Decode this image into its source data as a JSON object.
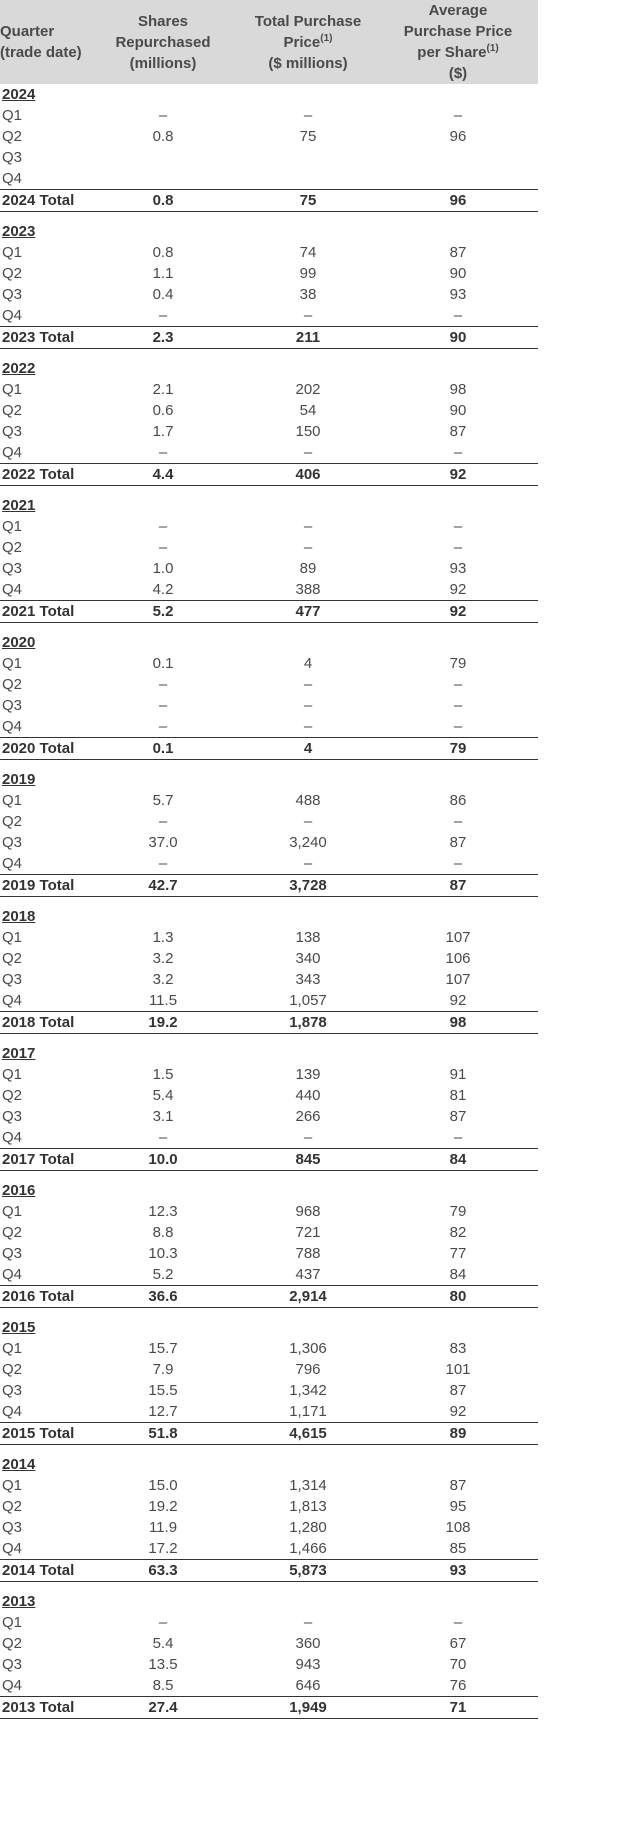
{
  "columns": {
    "quarter": [
      "Quarter",
      "(trade date)"
    ],
    "shares": [
      "Shares",
      "Repurchased",
      "(millions)"
    ],
    "total_price": [
      "Total Purchase",
      "Price",
      "($ millions)"
    ],
    "total_price_footnote": "(1)",
    "avg_price": [
      "Average",
      "Purchase Price",
      "per Share",
      "($)"
    ],
    "avg_price_footnote": "(1)"
  },
  "years": [
    {
      "year": "2024",
      "quarters": [
        {
          "q": "Q1",
          "shares": "–",
          "total": "–",
          "avg": "–"
        },
        {
          "q": "Q2",
          "shares": "0.8",
          "total": "75",
          "avg": "96"
        },
        {
          "q": "Q3",
          "shares": "",
          "total": "",
          "avg": ""
        },
        {
          "q": "Q4",
          "shares": "",
          "total": "",
          "avg": ""
        }
      ],
      "total_label": "2024 Total",
      "total": {
        "shares": "0.8",
        "total": "75",
        "avg": "96"
      }
    },
    {
      "year": "2023",
      "quarters": [
        {
          "q": "Q1",
          "shares": "0.8",
          "total": "74",
          "avg": "87"
        },
        {
          "q": "Q2",
          "shares": "1.1",
          "total": "99",
          "avg": "90"
        },
        {
          "q": "Q3",
          "shares": "0.4",
          "total": "38",
          "avg": "93"
        },
        {
          "q": "Q4",
          "shares": "–",
          "total": "–",
          "avg": "–"
        }
      ],
      "total_label": "2023 Total",
      "total": {
        "shares": "2.3",
        "total": "211",
        "avg": "90"
      }
    },
    {
      "year": "2022",
      "quarters": [
        {
          "q": "Q1",
          "shares": "2.1",
          "total": "202",
          "avg": "98"
        },
        {
          "q": "Q2",
          "shares": "0.6",
          "total": "54",
          "avg": "90"
        },
        {
          "q": "Q3",
          "shares": "1.7",
          "total": "150",
          "avg": "87"
        },
        {
          "q": "Q4",
          "shares": "–",
          "total": "–",
          "avg": "–"
        }
      ],
      "total_label": "2022 Total",
      "total": {
        "shares": "4.4",
        "total": "406",
        "avg": "92"
      }
    },
    {
      "year": "2021",
      "quarters": [
        {
          "q": "Q1",
          "shares": "–",
          "total": "–",
          "avg": "–"
        },
        {
          "q": "Q2",
          "shares": "–",
          "total": "–",
          "avg": "–"
        },
        {
          "q": "Q3",
          "shares": "1.0",
          "total": "89",
          "avg": "93"
        },
        {
          "q": "Q4",
          "shares": "4.2",
          "total": "388",
          "avg": "92"
        }
      ],
      "total_label": "2021 Total",
      "total": {
        "shares": "5.2",
        "total": "477",
        "avg": "92"
      }
    },
    {
      "year": "2020",
      "quarters": [
        {
          "q": "Q1",
          "shares": "0.1",
          "total": "4",
          "avg": "79"
        },
        {
          "q": "Q2",
          "shares": "–",
          "total": "–",
          "avg": "–"
        },
        {
          "q": "Q3",
          "shares": "–",
          "total": "–",
          "avg": "–"
        },
        {
          "q": "Q4",
          "shares": "–",
          "total": "–",
          "avg": "–"
        }
      ],
      "total_label": "2020 Total",
      "total": {
        "shares": "0.1",
        "total": "4",
        "avg": "79"
      }
    },
    {
      "year": "2019",
      "quarters": [
        {
          "q": "Q1",
          "shares": "5.7",
          "total": "488",
          "avg": "86"
        },
        {
          "q": "Q2",
          "shares": "–",
          "total": "–",
          "avg": "–"
        },
        {
          "q": "Q3",
          "shares": "37.0",
          "total": "3,240",
          "avg": "87"
        },
        {
          "q": "Q4",
          "shares": "–",
          "total": "–",
          "avg": "–"
        }
      ],
      "total_label": "2019 Total",
      "total": {
        "shares": "42.7",
        "total": "3,728",
        "avg": "87"
      }
    },
    {
      "year": "2018",
      "quarters": [
        {
          "q": "Q1",
          "shares": "1.3",
          "total": "138",
          "avg": "107"
        },
        {
          "q": "Q2",
          "shares": "3.2",
          "total": "340",
          "avg": "106"
        },
        {
          "q": "Q3",
          "shares": "3.2",
          "total": "343",
          "avg": "107"
        },
        {
          "q": "Q4",
          "shares": "11.5",
          "total": "1,057",
          "avg": "92"
        }
      ],
      "total_label": "2018 Total",
      "total": {
        "shares": "19.2",
        "total": "1,878",
        "avg": "98"
      }
    },
    {
      "year": "2017",
      "quarters": [
        {
          "q": "Q1",
          "shares": "1.5",
          "total": "139",
          "avg": "91"
        },
        {
          "q": "Q2",
          "shares": "5.4",
          "total": "440",
          "avg": "81"
        },
        {
          "q": "Q3",
          "shares": "3.1",
          "total": "266",
          "avg": "87"
        },
        {
          "q": "Q4",
          "shares": "–",
          "total": "–",
          "avg": "–"
        }
      ],
      "total_label": "2017 Total",
      "total": {
        "shares": "10.0",
        "total": "845",
        "avg": "84"
      }
    },
    {
      "year": "2016",
      "quarters": [
        {
          "q": "Q1",
          "shares": "12.3",
          "total": "968",
          "avg": "79"
        },
        {
          "q": "Q2",
          "shares": "8.8",
          "total": "721",
          "avg": "82"
        },
        {
          "q": "Q3",
          "shares": "10.3",
          "total": "788",
          "avg": "77"
        },
        {
          "q": "Q4",
          "shares": "5.2",
          "total": "437",
          "avg": "84"
        }
      ],
      "total_label": "2016 Total",
      "total": {
        "shares": "36.6",
        "total": "2,914",
        "avg": "80"
      }
    },
    {
      "year": "2015",
      "quarters": [
        {
          "q": "Q1",
          "shares": "15.7",
          "total": "1,306",
          "avg": "83"
        },
        {
          "q": "Q2",
          "shares": "7.9",
          "total": "796",
          "avg": "101"
        },
        {
          "q": "Q3",
          "shares": "15.5",
          "total": "1,342",
          "avg": "87"
        },
        {
          "q": "Q4",
          "shares": "12.7",
          "total": "1,171",
          "avg": "92"
        }
      ],
      "total_label": "2015 Total",
      "total": {
        "shares": "51.8",
        "total": "4,615",
        "avg": "89"
      }
    },
    {
      "year": "2014",
      "quarters": [
        {
          "q": "Q1",
          "shares": "15.0",
          "total": "1,314",
          "avg": "87"
        },
        {
          "q": "Q2",
          "shares": "19.2",
          "total": "1,813",
          "avg": "95"
        },
        {
          "q": "Q3",
          "shares": "11.9",
          "total": "1,280",
          "avg": "108"
        },
        {
          "q": "Q4",
          "shares": "17.2",
          "total": "1,466",
          "avg": "85"
        }
      ],
      "total_label": "2014 Total",
      "total": {
        "shares": "63.3",
        "total": "5,873",
        "avg": "93"
      }
    },
    {
      "year": "2013",
      "quarters": [
        {
          "q": "Q1",
          "shares": "–",
          "total": "–",
          "avg": "–"
        },
        {
          "q": "Q2",
          "shares": "5.4",
          "total": "360",
          "avg": "67"
        },
        {
          "q": "Q3",
          "shares": "13.5",
          "total": "943",
          "avg": "70"
        },
        {
          "q": "Q4",
          "shares": "8.5",
          "total": "646",
          "avg": "76"
        }
      ],
      "total_label": "2013 Total",
      "total": {
        "shares": "27.4",
        "total": "1,949",
        "avg": "71"
      }
    }
  ]
}
